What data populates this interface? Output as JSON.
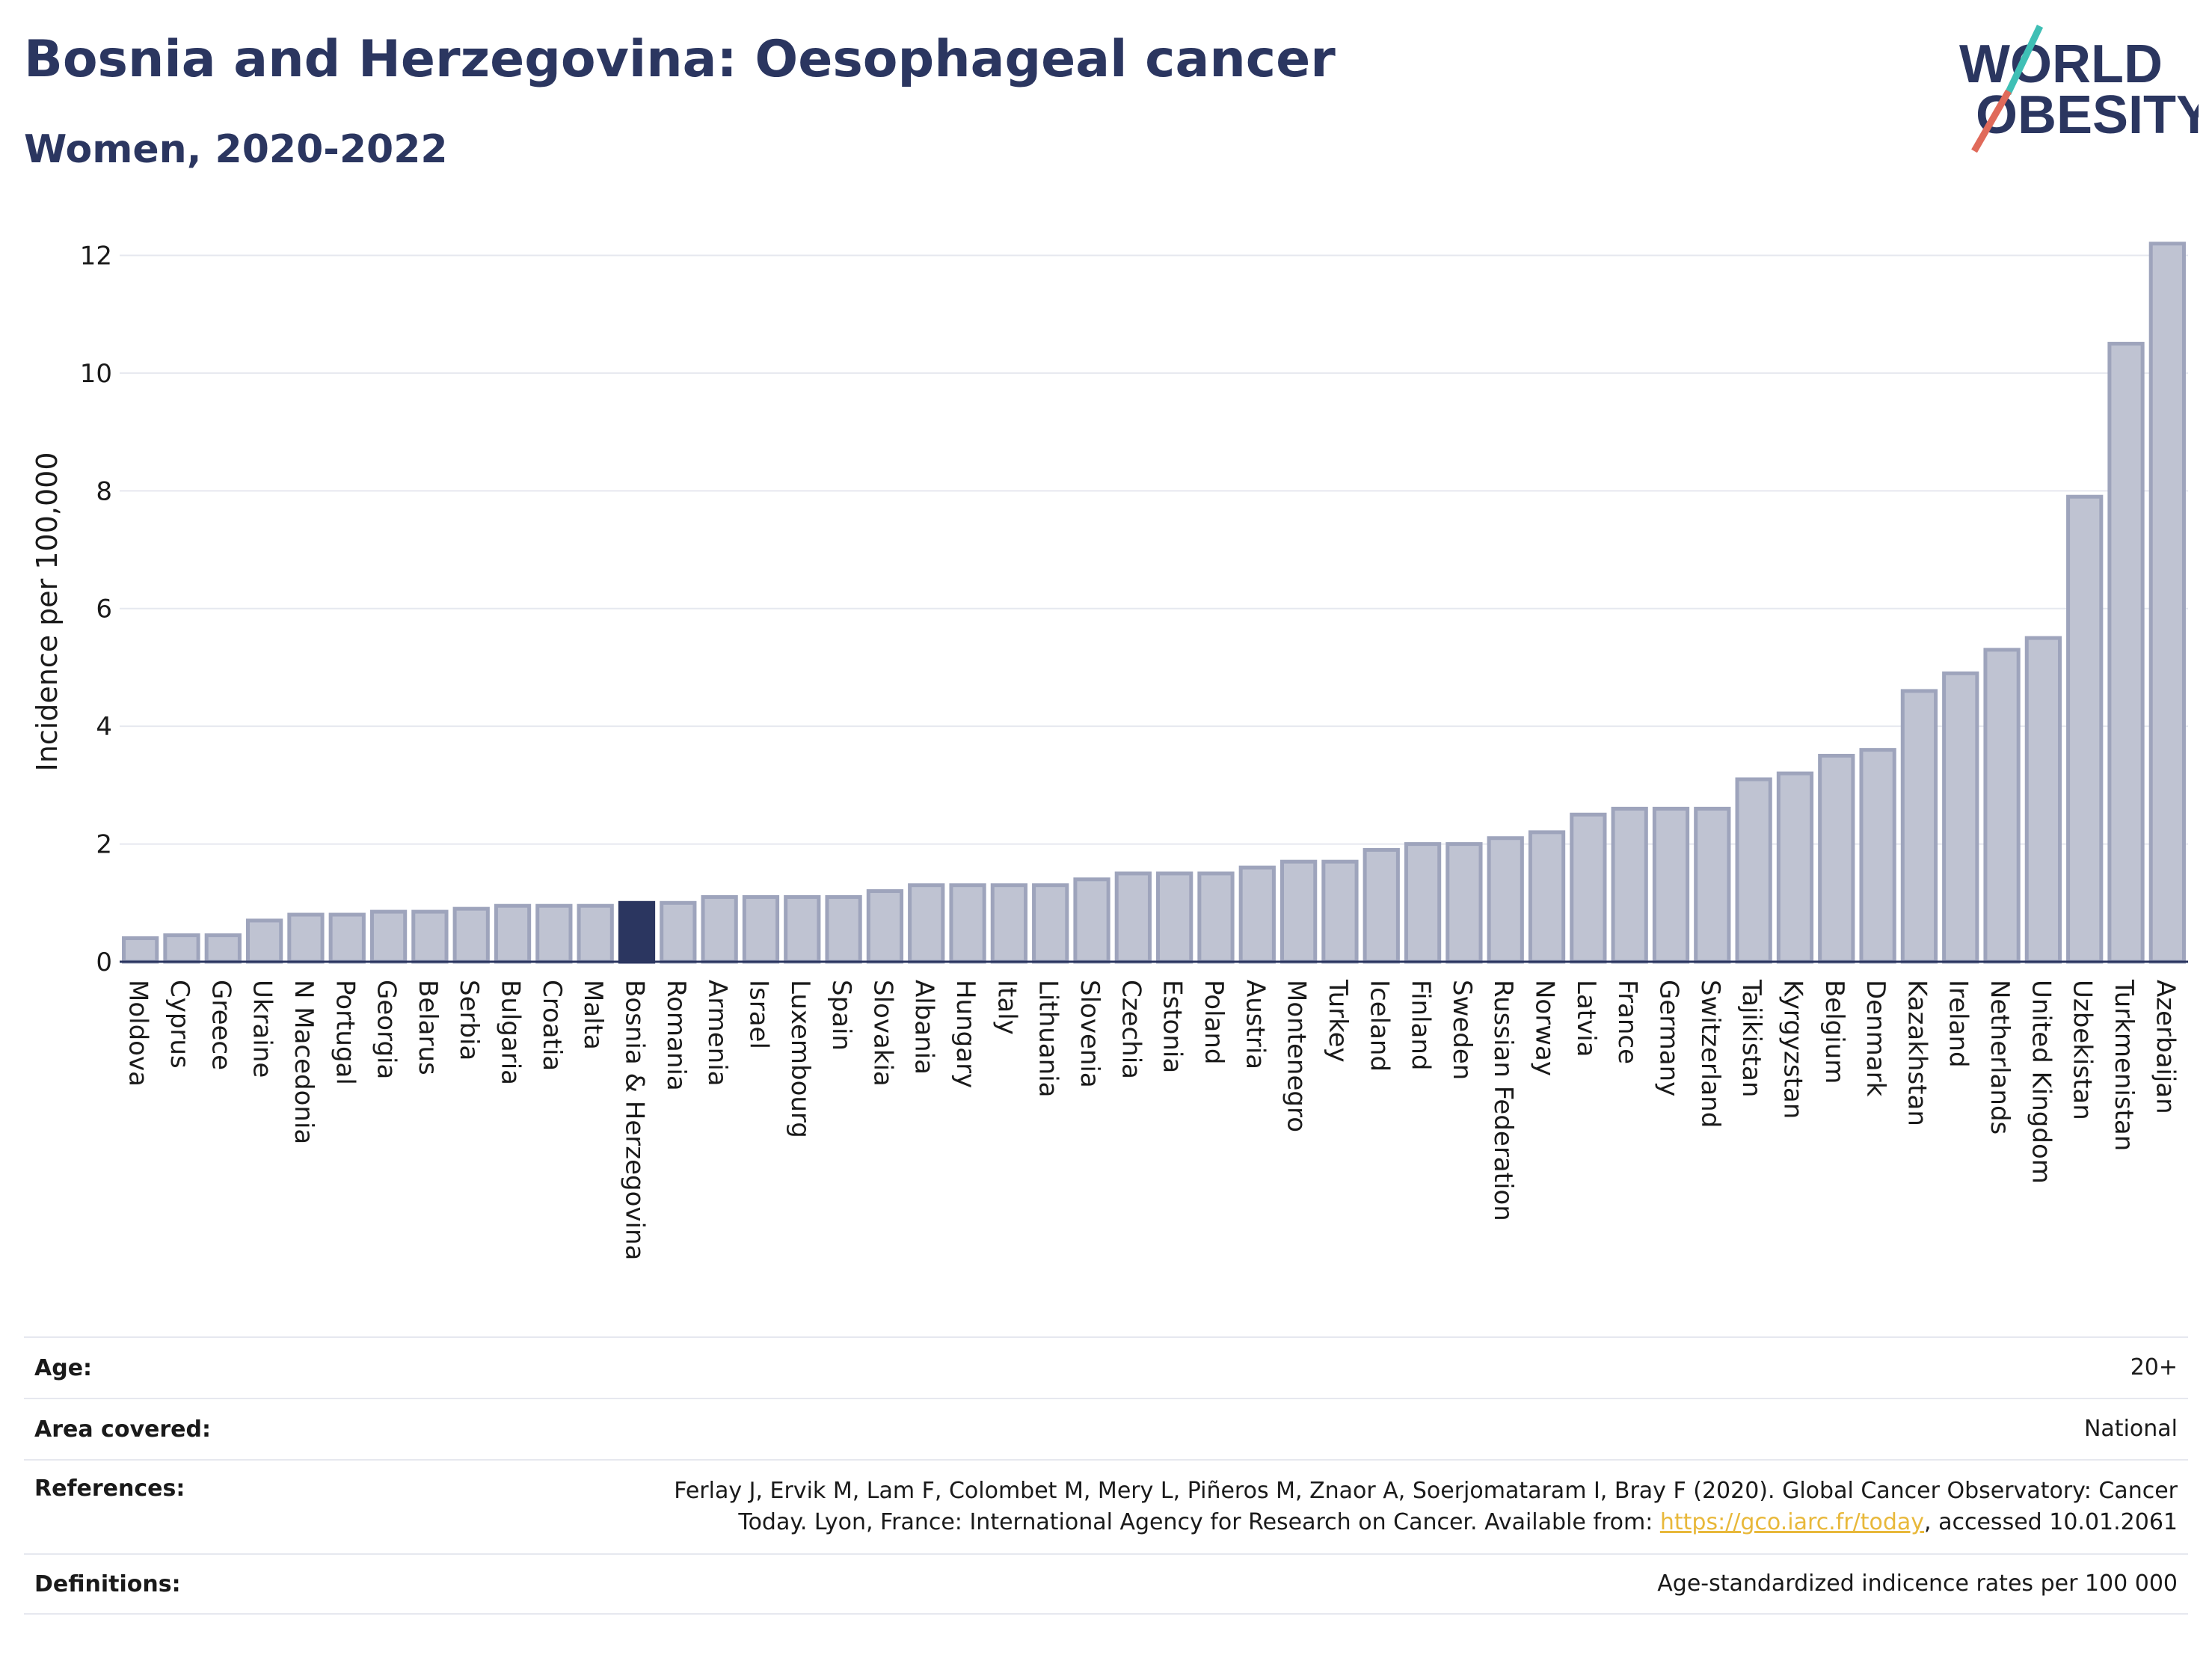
{
  "title": "Bosnia and Herzegovina: Oesophageal cancer",
  "subtitle": "Women, 2020-2022",
  "logo": {
    "line1": "WORLD",
    "line2": "OBESITY"
  },
  "colors": {
    "bar": "#bfc3d2",
    "bar_border": "#9ea4bc",
    "highlight": "#2b3660",
    "title": "#2b3660",
    "link": "#e8b83a",
    "slash_teal": "#3fbfb5",
    "slash_red": "#e06a5a"
  },
  "chart_data": {
    "type": "bar",
    "ylabel": "Incidence per 100,000",
    "xlabel": "",
    "ylim": [
      0,
      12.4
    ],
    "yticks": [
      0,
      2,
      4,
      6,
      8,
      10,
      12
    ],
    "grid": true,
    "highlight": "Bosnia & Herzegovina",
    "categories": [
      "Moldova",
      "Cyprus",
      "Greece",
      "Ukraine",
      "N Macedonia",
      "Portugal",
      "Georgia",
      "Belarus",
      "Serbia",
      "Bulgaria",
      "Croatia",
      "Malta",
      "Bosnia & Herzegovina",
      "Romania",
      "Armenia",
      "Israel",
      "Luxembourg",
      "Spain",
      "Slovakia",
      "Albania",
      "Hungary",
      "Italy",
      "Lithuania",
      "Slovenia",
      "Czechia",
      "Estonia",
      "Poland",
      "Austria",
      "Montenegro",
      "Turkey",
      "Iceland",
      "Finland",
      "Sweden",
      "Russian Federation",
      "Norway",
      "Latvia",
      "France",
      "Germany",
      "Switzerland",
      "Tajikistan",
      "Kyrgyzstan",
      "Belgium",
      "Denmark",
      "Kazakhstan",
      "Ireland",
      "Netherlands",
      "United Kingdom",
      "Uzbekistan",
      "Turkmenistan",
      "Azerbaijan"
    ],
    "values": [
      0.4,
      0.45,
      0.45,
      0.7,
      0.8,
      0.8,
      0.85,
      0.85,
      0.9,
      0.95,
      0.95,
      0.95,
      1.0,
      1.0,
      1.1,
      1.1,
      1.1,
      1.1,
      1.2,
      1.3,
      1.3,
      1.3,
      1.3,
      1.4,
      1.5,
      1.5,
      1.5,
      1.6,
      1.7,
      1.7,
      1.9,
      2.0,
      2.0,
      2.1,
      2.2,
      2.5,
      2.6,
      2.6,
      2.6,
      3.1,
      3.2,
      3.5,
      3.6,
      4.6,
      4.9,
      5.3,
      5.5,
      7.9,
      10.5,
      12.2
    ]
  },
  "info": {
    "age_label": "Age:",
    "age_value": "20+",
    "area_label": "Area covered:",
    "area_value": "National",
    "ref_label": "References:",
    "ref_line1": "Ferlay J, Ervik M, Lam F, Colombet M, Mery L, Piñeros M, Znaor A, Soerjomataram I, Bray F (2020). Global Cancer Observatory: Cancer",
    "ref_line2_pre": "Today. Lyon, France: International Agency for Research on Cancer. Available from: ",
    "ref_link": "https://gco.iarc.fr/today",
    "ref_line2_post": ", accessed 10.01.2061",
    "def_label": "Definitions:",
    "def_value": "Age-standardized indicence rates per 100 000"
  }
}
